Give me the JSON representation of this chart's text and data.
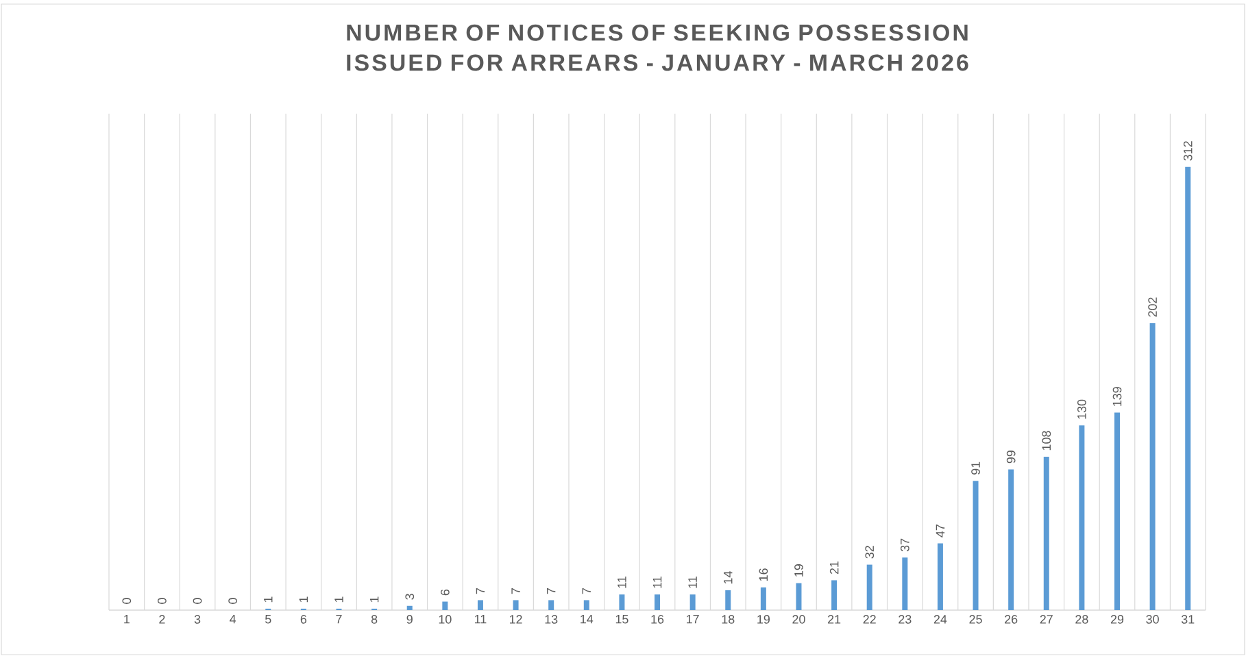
{
  "chart_data": {
    "type": "bar",
    "title": "NUMBER OF NOTICES OF SEEKING POSSESSION ISSUED FOR ARREARS - JANUARY - MARCH 2026",
    "categories": [
      "1",
      "2",
      "3",
      "4",
      "5",
      "6",
      "7",
      "8",
      "9",
      "10",
      "11",
      "12",
      "13",
      "14",
      "15",
      "16",
      "17",
      "18",
      "19",
      "20",
      "21",
      "22",
      "23",
      "24",
      "25",
      "26",
      "27",
      "28",
      "29",
      "30",
      "31"
    ],
    "values": [
      0,
      0,
      0,
      0,
      1,
      1,
      1,
      1,
      3,
      6,
      7,
      7,
      7,
      7,
      11,
      11,
      11,
      14,
      16,
      19,
      21,
      32,
      37,
      47,
      91,
      99,
      108,
      130,
      139,
      202,
      312
    ],
    "color": "#5b9bd5",
    "data_labels": true,
    "grid": "x"
  }
}
